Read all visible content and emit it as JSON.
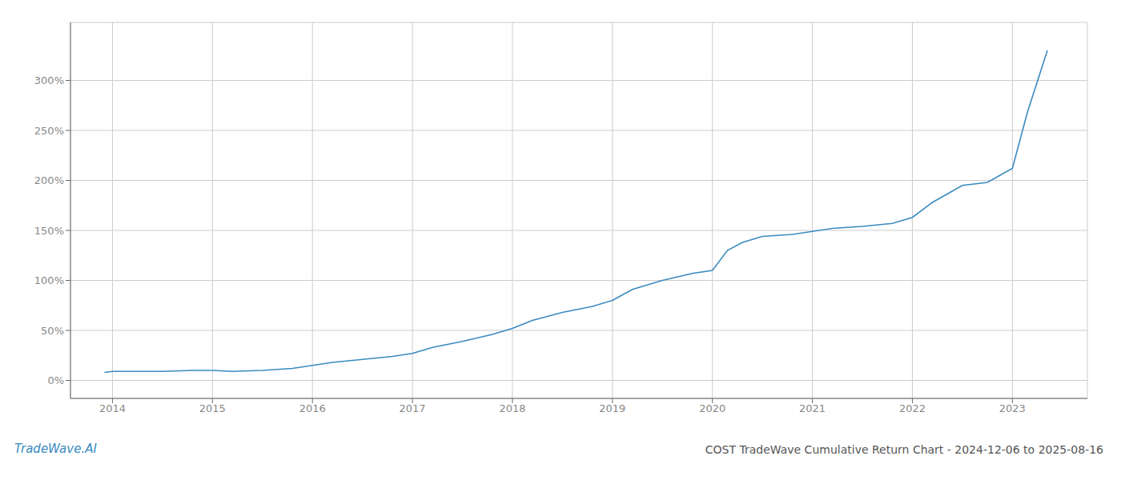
{
  "chart_data": {
    "type": "line",
    "title": "COST TradeWave Cumulative Return Chart - 2024-12-06 to 2025-08-16",
    "annotations": [
      "TradeWave.AI"
    ],
    "color": "#3a8abf",
    "grid": true,
    "xlim": [
      2013.58,
      2023.75
    ],
    "ylim": [
      -0.18,
      3.58
    ],
    "xticks": [
      2014,
      2015,
      2016,
      2017,
      2018,
      2019,
      2020,
      2021,
      2022,
      2023
    ],
    "yticks": [
      {
        "value": 0.0,
        "label": "0%"
      },
      {
        "value": 0.5,
        "label": "50%"
      },
      {
        "value": 1.0,
        "label": "100%"
      },
      {
        "value": 1.5,
        "label": "150%"
      },
      {
        "value": 2.0,
        "label": "200%"
      },
      {
        "value": 2.5,
        "label": "250%"
      },
      {
        "value": 3.0,
        "label": "300%"
      }
    ],
    "x": [
      2013.92,
      2014.0,
      2014.2,
      2014.5,
      2014.8,
      2015.0,
      2015.2,
      2015.5,
      2015.8,
      2016.0,
      2016.2,
      2016.5,
      2016.8,
      2017.0,
      2017.2,
      2017.5,
      2017.8,
      2018.0,
      2018.2,
      2018.5,
      2018.8,
      2019.0,
      2019.2,
      2019.5,
      2019.8,
      2020.0,
      2020.15,
      2020.3,
      2020.5,
      2020.8,
      2021.0,
      2021.2,
      2021.5,
      2021.8,
      2022.0,
      2022.2,
      2022.5,
      2022.75,
      2023.0,
      2023.15,
      2023.35
    ],
    "values": [
      0.08,
      0.09,
      0.09,
      0.09,
      0.1,
      0.1,
      0.09,
      0.1,
      0.12,
      0.15,
      0.18,
      0.21,
      0.24,
      0.27,
      0.33,
      0.39,
      0.46,
      0.52,
      0.6,
      0.68,
      0.74,
      0.8,
      0.91,
      1.0,
      1.07,
      1.1,
      1.3,
      1.38,
      1.44,
      1.46,
      1.49,
      1.52,
      1.54,
      1.57,
      1.63,
      1.78,
      1.95,
      1.98,
      2.12,
      2.68,
      3.3
    ]
  }
}
